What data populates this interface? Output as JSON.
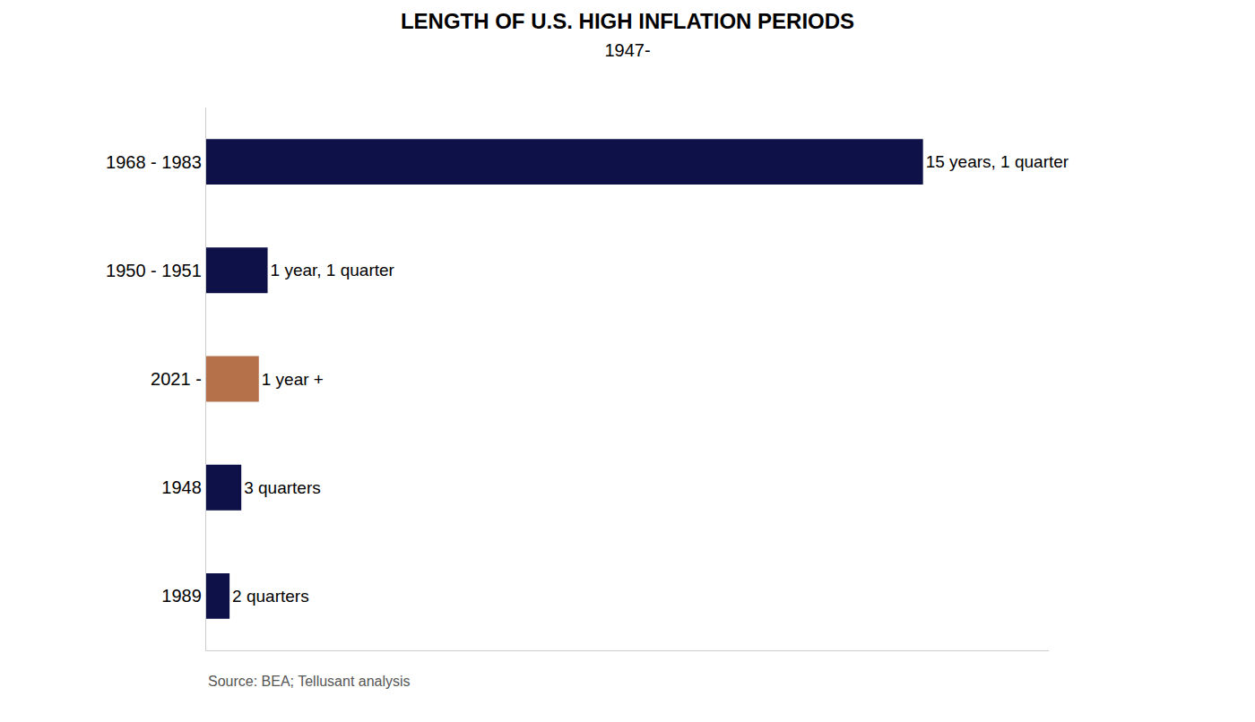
{
  "chart_data": {
    "type": "bar",
    "title": "LENGTH OF U.S. HIGH INFLATION PERIODS",
    "subtitle": "1947-",
    "categories": [
      "1968 - 1983",
      "1950 - 1951",
      "2021 -",
      "1948",
      "1989"
    ],
    "values": [
      61.25,
      5.25,
      4.5,
      3.0,
      2.0
    ],
    "value_labels": [
      "15 years, 1 quarter",
      "1 year, 1 quarter",
      "1 year +",
      "3 quarters",
      "2 quarters"
    ],
    "colors": [
      "#0d1147",
      "#0d1147",
      "#b5714a",
      "#0d1147",
      "#0d1147"
    ],
    "orientation": "horizontal",
    "xlim": [
      0,
      72
    ],
    "data_labels": true,
    "tick_labels": "y",
    "grid": false,
    "annotations": [
      "Source: BEA; Tellusant analysis"
    ]
  }
}
